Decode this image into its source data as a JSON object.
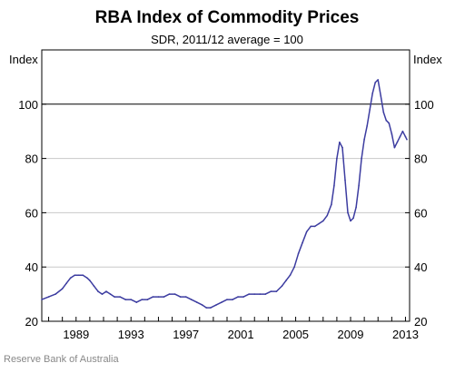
{
  "chart_data": {
    "type": "line",
    "title": "RBA Index of Commodity Prices",
    "subtitle": "SDR, 2011/12 average = 100",
    "ylabel_left": "Index",
    "ylabel_right": "Index",
    "xlim": [
      1986.5,
      2013.3
    ],
    "ylim": [
      20,
      120
    ],
    "yticks": [
      20,
      40,
      60,
      80,
      100
    ],
    "xtick_labels": [
      "1989",
      "1993",
      "1997",
      "2001",
      "2005",
      "2009",
      "2013"
    ],
    "xtick_values": [
      1989,
      1993,
      1997,
      2001,
      2005,
      2009,
      2013
    ],
    "reference_line": 100,
    "grid": true,
    "line_color": "#3c3ca0",
    "source": "Reserve Bank of Australia",
    "series": [
      {
        "x": [
          1986.5,
          1987.0,
          1987.5,
          1988.0,
          1988.3,
          1988.6,
          1988.9,
          1989.2,
          1989.5,
          1989.8,
          1990.0,
          1990.3,
          1990.6,
          1990.9,
          1991.2,
          1991.5,
          1991.8,
          1992.2,
          1992.6,
          1993.0,
          1993.4,
          1993.8,
          1994.2,
          1994.6,
          1995.0,
          1995.4,
          1995.8,
          1996.2,
          1996.6,
          1997.0,
          1997.4,
          1997.8,
          1998.2,
          1998.5,
          1998.8,
          1999.2,
          1999.6,
          2000.0,
          2000.4,
          2000.8,
          2001.2,
          2001.6,
          2002.0,
          2002.4,
          2002.8,
          2003.2,
          2003.6,
          2004.0,
          2004.3,
          2004.6,
          2004.9,
          2005.2,
          2005.5,
          2005.8,
          2006.1,
          2006.4,
          2006.7,
          2007.0,
          2007.3,
          2007.6,
          2007.8,
          2008.0,
          2008.2,
          2008.4,
          2008.6,
          2008.8,
          2009.0,
          2009.2,
          2009.4,
          2009.6,
          2009.8,
          2010.0,
          2010.2,
          2010.4,
          2010.6,
          2010.8,
          2011.0,
          2011.2,
          2011.4,
          2011.6,
          2011.8,
          2012.0,
          2012.2,
          2012.4,
          2012.6,
          2012.8,
          2013.0,
          2013.1
        ],
        "values": [
          28,
          29,
          30,
          32,
          34,
          36,
          37,
          37,
          37,
          36,
          35,
          33,
          31,
          30,
          31,
          30,
          29,
          29,
          28,
          28,
          27,
          28,
          28,
          29,
          29,
          29,
          30,
          30,
          29,
          29,
          28,
          27,
          26,
          25,
          25,
          26,
          27,
          28,
          28,
          29,
          29,
          30,
          30,
          30,
          30,
          31,
          31,
          33,
          35,
          37,
          40,
          45,
          49,
          53,
          55,
          55,
          56,
          57,
          59,
          63,
          70,
          80,
          86,
          84,
          72,
          60,
          57,
          58,
          62,
          70,
          80,
          87,
          92,
          98,
          104,
          108,
          109,
          103,
          97,
          94,
          93,
          89,
          84,
          86,
          88,
          90,
          88,
          87
        ]
      }
    ]
  }
}
